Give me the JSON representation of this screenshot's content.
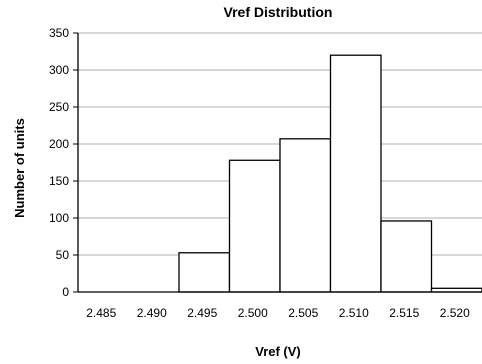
{
  "chart_data": {
    "type": "bar",
    "title": "Vref Distribution",
    "xlabel": "Vref (V)",
    "ylabel": "Number of units",
    "categories": [
      "2.485",
      "2.490",
      "2.495",
      "2.500",
      "2.505",
      "2.510",
      "2.515",
      "2.520"
    ],
    "values": [
      0,
      0,
      53,
      178,
      207,
      320,
      96,
      5
    ],
    "ylim": [
      0,
      350
    ],
    "yticks": [
      0,
      50,
      100,
      150,
      200,
      250,
      300,
      350
    ],
    "grid": true,
    "legend": "none",
    "bar_fill": "#ffffff",
    "bar_stroke": "#000000",
    "grid_color": "#b0b0b0"
  }
}
